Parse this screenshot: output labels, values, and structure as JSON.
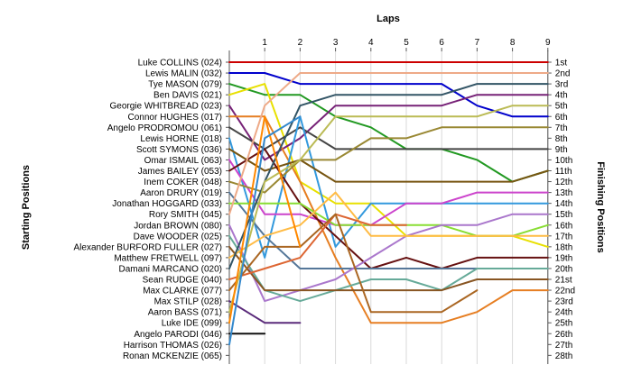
{
  "chart_data": {
    "type": "line",
    "title": "",
    "top_axis_title": "Laps",
    "left_axis_title": "Starting Positions",
    "right_axis_title": "Finishing Positions",
    "laps": [
      1,
      2,
      3,
      4,
      5,
      6,
      7,
      8,
      9
    ],
    "start_labels": [
      "Luke COLLINS (024)",
      "Lewis MALIN (032)",
      "Tye MASON (079)",
      "Ben DAVIS (021)",
      "Georgie WHITBREAD (023)",
      "Connor HUGHES (017)",
      "Angelo PRODROMOU (061)",
      "Lewis HORNE (018)",
      "Scott SYMONS (036)",
      "Omar ISMAIL (063)",
      "James BAILEY (053)",
      "Inem COKER (048)",
      "Aaron DRURY (019)",
      "Jonathan HOGGARD (033)",
      "Rory SMITH (045)",
      "Jordan BROWN (080)",
      "Dave WOODER (025)",
      "Alexander BURFORD FULLER (027)",
      "Matthew FRETWELL (097)",
      "Damani MARCANO (020)",
      "Sean RUDGE (040)",
      "Max CLARKE (077)",
      "Max STILP (028)",
      "Aaron BASS (071)",
      "Luke IDE (099)",
      "Angelo PARODI (046)",
      "Harrison THOMAS (026)",
      "Ronan MCKENZIE (065)"
    ],
    "finish_labels": [
      "1st",
      "2nd",
      "3rd",
      "4th",
      "5th",
      "6th",
      "7th",
      "8th",
      "9th",
      "10th",
      "11th",
      "12th",
      "13th",
      "14th",
      "15th",
      "16th",
      "17th",
      "18th",
      "19th",
      "20th",
      "21st",
      "22nd",
      "23rd",
      "24th",
      "25th",
      "26th",
      "27th",
      "28th"
    ],
    "series": [
      {
        "color": "#cc0000",
        "positions": [
          1,
          1,
          1,
          1,
          1,
          1,
          1,
          1,
          1,
          1
        ]
      },
      {
        "color": "#0000cc",
        "positions": [
          2,
          2,
          3,
          3,
          3,
          3,
          3,
          5,
          6,
          6
        ]
      },
      {
        "color": "#229922",
        "positions": [
          3,
          4,
          4,
          6,
          7,
          9,
          9,
          10,
          12,
          11
        ]
      },
      {
        "color": "#e8e000",
        "positions": [
          4,
          3,
          12,
          14,
          14,
          17,
          17,
          17,
          17,
          18
        ]
      },
      {
        "color": "#772277",
        "positions": [
          5,
          10,
          8,
          5,
          5,
          5,
          5,
          4,
          4,
          4
        ]
      },
      {
        "color": "#e67e22",
        "positions": [
          6,
          6,
          12,
          19,
          25,
          25,
          25,
          24,
          22,
          22
        ]
      },
      {
        "color": "#444444",
        "positions": [
          7,
          9,
          7,
          9,
          9,
          9,
          9,
          9,
          9,
          9
        ]
      },
      {
        "color": "#3399dd",
        "positions": [
          8,
          19,
          6,
          18,
          14,
          14,
          14,
          14,
          14,
          14
        ]
      },
      {
        "color": "#775511",
        "positions": [
          9,
          11,
          10,
          12,
          12,
          12,
          12,
          12,
          12,
          11
        ]
      },
      {
        "color": "#cc44cc",
        "positions": [
          10,
          15,
          15,
          16,
          16,
          14,
          14,
          13,
          13,
          13
        ]
      },
      {
        "color": "#661111",
        "positions": [
          11,
          9,
          14,
          17,
          20,
          19,
          20,
          19,
          19,
          19
        ]
      },
      {
        "color": "#998833",
        "positions": [
          12,
          13,
          10,
          10,
          8,
          8,
          7,
          7,
          7,
          7
        ]
      },
      {
        "color": "#557799",
        "positions": [
          13,
          17,
          20,
          20,
          20,
          20,
          20,
          20,
          20,
          20
        ]
      },
      {
        "color": "#88dd33",
        "positions": [
          14,
          14,
          14,
          16,
          16,
          16,
          16,
          17,
          17,
          16
        ]
      },
      {
        "color": "#eeaa88",
        "positions": [
          15,
          5,
          2,
          2,
          2,
          2,
          2,
          2,
          2,
          2
        ]
      },
      {
        "color": "#aa77cc",
        "positions": [
          16,
          23,
          22,
          21,
          19,
          17,
          16,
          16,
          15,
          15
        ]
      },
      {
        "color": "#66aa99",
        "positions": [
          17,
          22,
          23,
          22,
          21,
          21,
          22,
          20,
          20,
          20
        ]
      },
      {
        "color": "#885522",
        "positions": [
          18,
          22,
          22,
          22,
          22,
          22,
          22,
          21,
          21,
          21
        ]
      },
      {
        "color": "#ffbb44",
        "positions": [
          19,
          17,
          16,
          13,
          17,
          17,
          17,
          17,
          17,
          17
        ]
      },
      {
        "color": "#335566",
        "positions": [
          20,
          12,
          5,
          4,
          4,
          4,
          4,
          3,
          3,
          3
        ]
      },
      {
        "color": "#dd6633",
        "positions": [
          21,
          20,
          19,
          15,
          16,
          16
        ]
      },
      {
        "color": "#aa6622",
        "positions": [
          22,
          18,
          18,
          15,
          24,
          24,
          24,
          22
        ]
      },
      {
        "color": "#5a2a7a",
        "positions": [
          23,
          25,
          25
        ]
      },
      {
        "color": "#bbbb55",
        "positions": [
          24,
          12,
          10,
          6,
          6,
          6,
          6,
          6,
          5,
          5
        ]
      },
      {
        "color": "#ff8800",
        "positions": [
          25,
          6,
          18
        ]
      },
      {
        "color": "#111111",
        "positions": [
          26,
          26
        ]
      },
      {
        "color": "#3388cc",
        "positions": [
          27,
          8,
          6
        ]
      }
    ],
    "grid": true,
    "grid_orientation": "vertical",
    "legend": "none"
  }
}
